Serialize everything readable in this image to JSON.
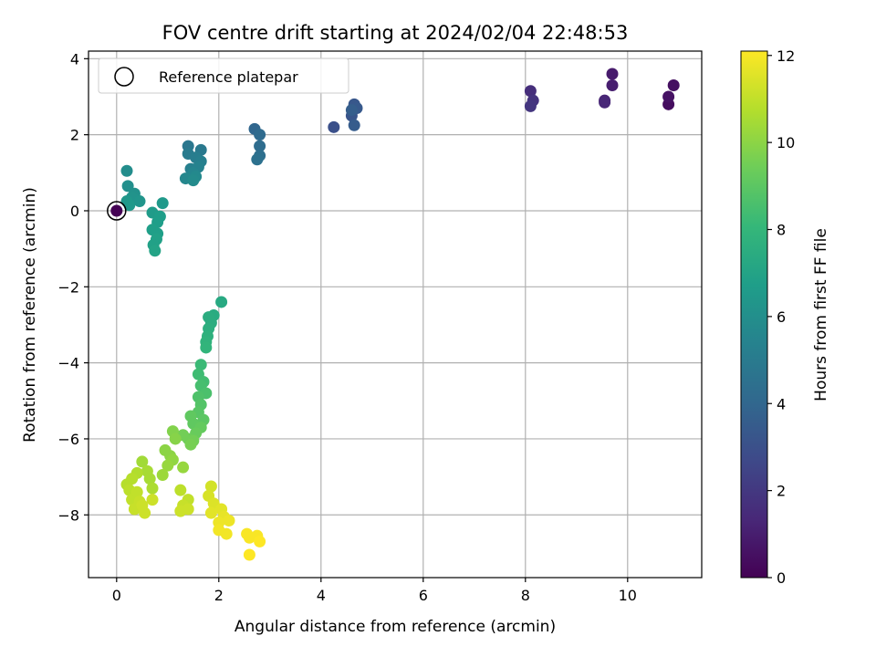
{
  "chart_data": {
    "type": "scatter",
    "title": "FOV centre drift starting at 2024/02/04 22:48:53",
    "xlabel": "Angular distance from reference (arcmin)",
    "ylabel": "Rotation from reference (arcmin)",
    "xlim": [
      -0.55,
      11.45
    ],
    "ylim": [
      -9.65,
      4.2
    ],
    "xticks": [
      0,
      2,
      4,
      6,
      8,
      10
    ],
    "yticks": [
      -8,
      -6,
      -4,
      -2,
      0,
      2,
      4
    ],
    "grid": true,
    "legend": {
      "position": "top-left",
      "entries": [
        "Reference platepar"
      ]
    },
    "reference_point": {
      "x": 0.0,
      "y": 0.0
    },
    "colorbar": {
      "label": "Hours from first FF file",
      "colormap": "viridis",
      "range": [
        0,
        12.1
      ],
      "ticks": [
        0,
        2,
        4,
        6,
        8,
        10,
        12
      ]
    },
    "points": [
      {
        "x": 0.0,
        "y": 0.0,
        "h": 0.0
      },
      {
        "x": 10.8,
        "y": 2.8,
        "h": 0.4
      },
      {
        "x": 10.9,
        "y": 3.3,
        "h": 0.5
      },
      {
        "x": 10.8,
        "y": 3.0,
        "h": 0.6
      },
      {
        "x": 9.7,
        "y": 3.6,
        "h": 0.9
      },
      {
        "x": 9.7,
        "y": 3.3,
        "h": 1.0
      },
      {
        "x": 9.55,
        "y": 2.9,
        "h": 1.2
      },
      {
        "x": 9.55,
        "y": 2.85,
        "h": 1.3
      },
      {
        "x": 8.1,
        "y": 3.15,
        "h": 1.6
      },
      {
        "x": 8.15,
        "y": 2.9,
        "h": 1.8
      },
      {
        "x": 8.1,
        "y": 2.75,
        "h": 1.9
      },
      {
        "x": 4.25,
        "y": 2.2,
        "h": 3.0
      },
      {
        "x": 4.6,
        "y": 2.5,
        "h": 3.2
      },
      {
        "x": 4.65,
        "y": 2.8,
        "h": 3.3
      },
      {
        "x": 4.7,
        "y": 2.7,
        "h": 3.4
      },
      {
        "x": 4.65,
        "y": 2.25,
        "h": 3.5
      },
      {
        "x": 4.6,
        "y": 2.65,
        "h": 3.6
      },
      {
        "x": 2.7,
        "y": 2.15,
        "h": 4.0
      },
      {
        "x": 2.8,
        "y": 2.0,
        "h": 4.2
      },
      {
        "x": 2.8,
        "y": 1.7,
        "h": 4.3
      },
      {
        "x": 2.8,
        "y": 1.45,
        "h": 4.4
      },
      {
        "x": 2.75,
        "y": 1.35,
        "h": 4.5
      },
      {
        "x": 1.4,
        "y": 1.7,
        "h": 4.8
      },
      {
        "x": 1.65,
        "y": 1.6,
        "h": 4.9
      },
      {
        "x": 1.4,
        "y": 1.5,
        "h": 5.0
      },
      {
        "x": 1.55,
        "y": 1.4,
        "h": 5.1
      },
      {
        "x": 1.65,
        "y": 1.3,
        "h": 5.2
      },
      {
        "x": 1.45,
        "y": 1.1,
        "h": 5.3
      },
      {
        "x": 1.6,
        "y": 1.15,
        "h": 5.4
      },
      {
        "x": 1.5,
        "y": 1.0,
        "h": 5.5
      },
      {
        "x": 1.35,
        "y": 0.85,
        "h": 5.6
      },
      {
        "x": 1.55,
        "y": 0.9,
        "h": 5.7
      },
      {
        "x": 1.5,
        "y": 0.8,
        "h": 5.8
      },
      {
        "x": 0.2,
        "y": 1.05,
        "h": 5.9
      },
      {
        "x": 0.22,
        "y": 0.65,
        "h": 6.0
      },
      {
        "x": 0.35,
        "y": 0.45,
        "h": 6.1
      },
      {
        "x": 0.3,
        "y": 0.35,
        "h": 6.2
      },
      {
        "x": 0.45,
        "y": 0.25,
        "h": 6.3
      },
      {
        "x": 0.2,
        "y": 0.25,
        "h": 6.4
      },
      {
        "x": 0.25,
        "y": 0.15,
        "h": 6.5
      },
      {
        "x": 0.9,
        "y": 0.2,
        "h": 6.5
      },
      {
        "x": 0.7,
        "y": -0.05,
        "h": 6.6
      },
      {
        "x": 0.85,
        "y": -0.15,
        "h": 6.7
      },
      {
        "x": 0.8,
        "y": -0.3,
        "h": 6.7
      },
      {
        "x": 0.7,
        "y": -0.5,
        "h": 6.8
      },
      {
        "x": 0.8,
        "y": -0.6,
        "h": 6.8
      },
      {
        "x": 0.78,
        "y": -0.75,
        "h": 6.9
      },
      {
        "x": 0.72,
        "y": -0.9,
        "h": 6.9
      },
      {
        "x": 0.75,
        "y": -1.05,
        "h": 7.0
      },
      {
        "x": 2.05,
        "y": -2.4,
        "h": 7.3
      },
      {
        "x": 1.9,
        "y": -2.75,
        "h": 7.4
      },
      {
        "x": 1.8,
        "y": -2.8,
        "h": 7.5
      },
      {
        "x": 1.85,
        "y": -2.95,
        "h": 7.5
      },
      {
        "x": 1.8,
        "y": -3.1,
        "h": 7.6
      },
      {
        "x": 1.78,
        "y": -3.3,
        "h": 7.7
      },
      {
        "x": 1.75,
        "y": -3.45,
        "h": 7.8
      },
      {
        "x": 1.75,
        "y": -3.6,
        "h": 7.9
      },
      {
        "x": 1.65,
        "y": -4.05,
        "h": 8.2
      },
      {
        "x": 1.6,
        "y": -4.3,
        "h": 8.3
      },
      {
        "x": 1.7,
        "y": -4.5,
        "h": 8.4
      },
      {
        "x": 1.65,
        "y": -4.6,
        "h": 8.5
      },
      {
        "x": 1.75,
        "y": -4.8,
        "h": 8.6
      },
      {
        "x": 1.6,
        "y": -4.9,
        "h": 8.7
      },
      {
        "x": 1.65,
        "y": -5.1,
        "h": 8.8
      },
      {
        "x": 1.6,
        "y": -5.3,
        "h": 8.9
      },
      {
        "x": 1.7,
        "y": -5.5,
        "h": 9.0
      },
      {
        "x": 1.5,
        "y": -5.6,
        "h": 9.1
      },
      {
        "x": 1.45,
        "y": -5.4,
        "h": 9.1
      },
      {
        "x": 1.65,
        "y": -5.7,
        "h": 9.2
      },
      {
        "x": 1.55,
        "y": -5.85,
        "h": 9.3
      },
      {
        "x": 1.4,
        "y": -6.0,
        "h": 9.4
      },
      {
        "x": 1.3,
        "y": -5.9,
        "h": 9.5
      },
      {
        "x": 1.5,
        "y": -6.05,
        "h": 9.5
      },
      {
        "x": 1.45,
        "y": -6.15,
        "h": 9.6
      },
      {
        "x": 1.1,
        "y": -5.8,
        "h": 9.8
      },
      {
        "x": 1.15,
        "y": -6.0,
        "h": 9.9
      },
      {
        "x": 0.95,
        "y": -6.3,
        "h": 10.0
      },
      {
        "x": 1.05,
        "y": -6.45,
        "h": 10.0
      },
      {
        "x": 1.1,
        "y": -6.55,
        "h": 10.1
      },
      {
        "x": 1.0,
        "y": -6.7,
        "h": 10.2
      },
      {
        "x": 1.3,
        "y": -6.75,
        "h": 10.2
      },
      {
        "x": 0.9,
        "y": -6.95,
        "h": 10.3
      },
      {
        "x": 0.5,
        "y": -6.6,
        "h": 10.4
      },
      {
        "x": 0.6,
        "y": -6.85,
        "h": 10.5
      },
      {
        "x": 0.65,
        "y": -7.05,
        "h": 10.5
      },
      {
        "x": 0.7,
        "y": -7.3,
        "h": 10.6
      },
      {
        "x": 0.4,
        "y": -6.9,
        "h": 10.7
      },
      {
        "x": 0.3,
        "y": -7.05,
        "h": 10.8
      },
      {
        "x": 0.2,
        "y": -7.2,
        "h": 10.8
      },
      {
        "x": 0.25,
        "y": -7.35,
        "h": 10.9
      },
      {
        "x": 0.3,
        "y": -7.6,
        "h": 11.0
      },
      {
        "x": 0.4,
        "y": -7.4,
        "h": 11.0
      },
      {
        "x": 0.45,
        "y": -7.65,
        "h": 11.1
      },
      {
        "x": 0.35,
        "y": -7.85,
        "h": 11.1
      },
      {
        "x": 0.55,
        "y": -7.95,
        "h": 11.2
      },
      {
        "x": 0.5,
        "y": -7.75,
        "h": 11.2
      },
      {
        "x": 0.7,
        "y": -7.6,
        "h": 11.2
      },
      {
        "x": 1.25,
        "y": -7.35,
        "h": 10.9
      },
      {
        "x": 1.4,
        "y": -7.6,
        "h": 11.0
      },
      {
        "x": 1.3,
        "y": -7.75,
        "h": 11.1
      },
      {
        "x": 1.4,
        "y": -7.85,
        "h": 11.2
      },
      {
        "x": 1.25,
        "y": -7.9,
        "h": 11.2
      },
      {
        "x": 1.85,
        "y": -7.25,
        "h": 11.3
      },
      {
        "x": 1.8,
        "y": -7.5,
        "h": 11.4
      },
      {
        "x": 1.9,
        "y": -7.7,
        "h": 11.5
      },
      {
        "x": 1.85,
        "y": -7.95,
        "h": 11.6
      },
      {
        "x": 2.05,
        "y": -7.85,
        "h": 11.6
      },
      {
        "x": 2.1,
        "y": -8.05,
        "h": 11.7
      },
      {
        "x": 2.2,
        "y": -8.15,
        "h": 11.8
      },
      {
        "x": 2.0,
        "y": -8.2,
        "h": 11.8
      },
      {
        "x": 2.15,
        "y": -8.5,
        "h": 11.9
      },
      {
        "x": 2.0,
        "y": -8.4,
        "h": 11.9
      },
      {
        "x": 2.55,
        "y": -8.5,
        "h": 12.0
      },
      {
        "x": 2.75,
        "y": -8.55,
        "h": 12.0
      },
      {
        "x": 2.6,
        "y": -8.6,
        "h": 12.0
      },
      {
        "x": 2.8,
        "y": -8.7,
        "h": 12.1
      },
      {
        "x": 2.6,
        "y": -9.05,
        "h": 12.1
      }
    ]
  }
}
